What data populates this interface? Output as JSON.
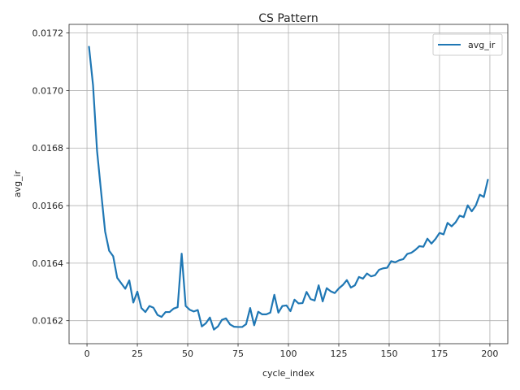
{
  "chart_data": {
    "type": "line",
    "title": "CS Pattern",
    "xlabel": "cycle_index",
    "ylabel": "avg_ir",
    "xlim": [
      -8.9,
      208.9
    ],
    "ylim": [
      0.01612,
      0.01723
    ],
    "xticks": [
      0,
      25,
      50,
      75,
      100,
      125,
      150,
      175,
      200
    ],
    "yticks": [
      0.0162,
      0.0164,
      0.0166,
      0.0168,
      0.017,
      0.0172
    ],
    "ytick_labels": [
      "0.0162",
      "0.0164",
      "0.0166",
      "0.0168",
      "0.0170",
      "0.0172"
    ],
    "grid": true,
    "legend": {
      "position": "top-right"
    },
    "series": [
      {
        "name": "avg_ir",
        "color": "#1f77b4",
        "x": [
          1,
          3,
          5,
          7,
          9,
          11,
          13,
          15,
          17,
          19,
          21,
          23,
          25,
          27,
          29,
          31,
          33,
          35,
          37,
          39,
          41,
          43,
          45,
          47,
          49,
          51,
          53,
          55,
          57,
          59,
          61,
          63,
          65,
          67,
          69,
          71,
          73,
          75,
          77,
          79,
          81,
          83,
          85,
          87,
          89,
          91,
          93,
          95,
          97,
          99,
          101,
          103,
          105,
          107,
          109,
          111,
          113,
          115,
          117,
          119,
          121,
          123,
          125,
          127,
          129,
          131,
          133,
          135,
          137,
          139,
          141,
          143,
          145,
          147,
          149,
          151,
          153,
          155,
          157,
          159,
          161,
          163,
          165,
          167,
          169,
          171,
          173,
          175,
          177,
          179,
          181,
          183,
          185,
          187,
          189,
          191,
          193,
          195,
          197,
          199
        ],
        "y": [
          0.017152,
          0.017019,
          0.01679,
          0.016648,
          0.01651,
          0.016443,
          0.016424,
          0.016349,
          0.01633,
          0.016311,
          0.01634,
          0.016263,
          0.016301,
          0.016244,
          0.01623,
          0.016251,
          0.016245,
          0.01622,
          0.016213,
          0.01623,
          0.01623,
          0.016242,
          0.016247,
          0.016433,
          0.016251,
          0.016238,
          0.016232,
          0.016237,
          0.01618,
          0.016191,
          0.016211,
          0.016169,
          0.01618,
          0.016203,
          0.016208,
          0.016187,
          0.016179,
          0.016178,
          0.016178,
          0.016188,
          0.016244,
          0.016184,
          0.016231,
          0.016222,
          0.016222,
          0.016228,
          0.01629,
          0.016228,
          0.016251,
          0.016253,
          0.016233,
          0.016273,
          0.01626,
          0.016261,
          0.0163,
          0.016275,
          0.01627,
          0.016323,
          0.016267,
          0.016313,
          0.016302,
          0.016296,
          0.016312,
          0.016324,
          0.016341,
          0.016315,
          0.016323,
          0.016352,
          0.016346,
          0.016364,
          0.016354,
          0.016358,
          0.016377,
          0.016382,
          0.016384,
          0.016407,
          0.016403,
          0.01641,
          0.016414,
          0.016432,
          0.016436,
          0.016446,
          0.016459,
          0.016457,
          0.016485,
          0.016468,
          0.016484,
          0.016505,
          0.0165,
          0.01654,
          0.016528,
          0.016542,
          0.016565,
          0.01656,
          0.016601,
          0.01658,
          0.0166,
          0.016638,
          0.01663,
          0.01669
        ]
      }
    ]
  }
}
